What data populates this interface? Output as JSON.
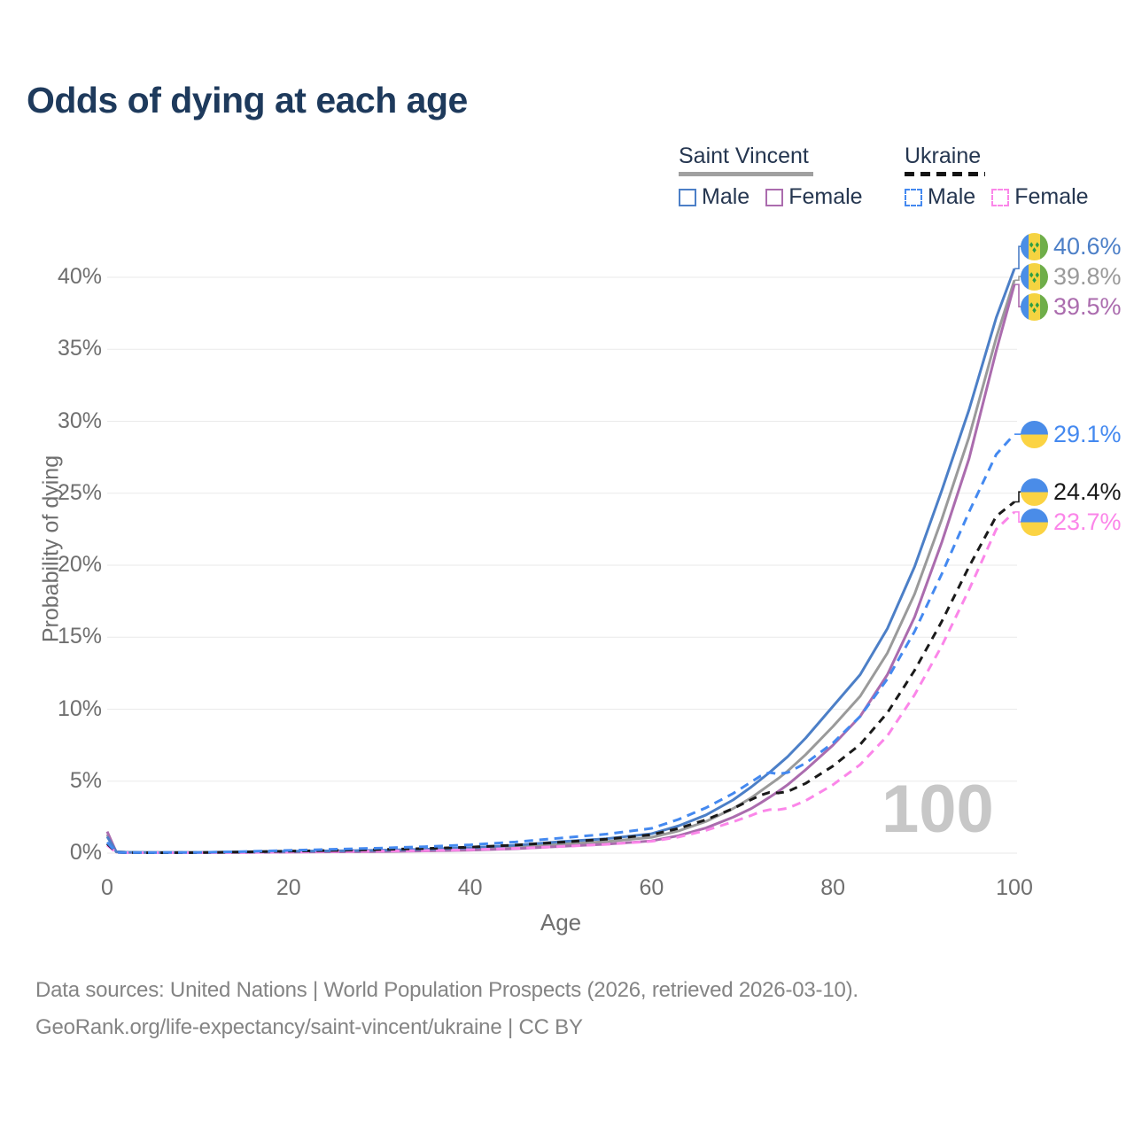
{
  "title": "Odds of dying at each age",
  "watermark": "100",
  "legend": {
    "groups": [
      {
        "name": "Saint Vincent",
        "style": "solid",
        "underline_color": "#a0a0a0",
        "items": [
          {
            "label": "Male",
            "color": "#4c7fc7"
          },
          {
            "label": "Female",
            "color": "#ab6cae"
          }
        ]
      },
      {
        "name": "Ukraine",
        "style": "dashed",
        "underline_color": "#141414",
        "items": [
          {
            "label": "Male",
            "color": "#4489f0"
          },
          {
            "label": "Female",
            "color": "#fb86e9"
          }
        ]
      }
    ]
  },
  "axes": {
    "x": {
      "title": "Age",
      "range": [
        0,
        100
      ],
      "ticks": [
        0,
        20,
        40,
        60,
        80,
        100
      ]
    },
    "y": {
      "title": "Probability of dying",
      "unit": "%",
      "range": [
        0,
        40
      ],
      "ticks": [
        0,
        5,
        10,
        15,
        20,
        25,
        30,
        35,
        40
      ],
      "grid": true
    }
  },
  "flag_colors": {
    "sv": {
      "blue": "#4a8ee6",
      "yellow": "#f5d341",
      "green": "#6fae49",
      "diamond": "#2f9e43"
    },
    "ua": {
      "blue": "#4a8ce8",
      "yellow": "#fbd343"
    }
  },
  "footer": {
    "line1": "Data sources: United Nations | World Population Prospects (2026, retrieved 2026-03-10).",
    "line2": "GeoRank.org/life-expectancy/saint-vincent/ukraine | CC BY"
  },
  "chart_data": {
    "type": "line",
    "x": [
      0,
      1,
      2,
      5,
      10,
      15,
      20,
      25,
      30,
      35,
      40,
      45,
      50,
      55,
      60,
      63,
      66,
      69,
      71,
      72,
      73,
      74,
      75,
      77,
      80,
      83,
      86,
      89,
      92,
      95,
      98,
      100
    ],
    "series": [
      {
        "id": "sv-male",
        "name": "Saint Vincent Male",
        "color": "#4c7fc7",
        "dash": null,
        "flag": "sv",
        "end_label": "40.6%",
        "values": [
          1.15,
          0.1,
          0.07,
          0.05,
          0.05,
          0.09,
          0.13,
          0.16,
          0.2,
          0.27,
          0.38,
          0.55,
          0.8,
          1.0,
          1.35,
          1.9,
          2.65,
          3.7,
          4.6,
          5.1,
          5.6,
          6.15,
          6.7,
          8.0,
          10.2,
          12.4,
          15.6,
          19.9,
          25.2,
          30.8,
          37.2,
          40.6
        ]
      },
      {
        "id": "sv-total",
        "name": "Saint Vincent Both sexes",
        "color": "#9a9a9a",
        "dash": null,
        "flag": "sv",
        "end_label": "39.8%",
        "values": [
          1.3,
          0.09,
          0.06,
          0.05,
          0.05,
          0.07,
          0.1,
          0.12,
          0.15,
          0.2,
          0.28,
          0.42,
          0.62,
          0.8,
          1.1,
          1.55,
          2.2,
          3.1,
          3.85,
          4.3,
          4.75,
          5.2,
          5.7,
          6.85,
          8.8,
          10.9,
          13.9,
          18.0,
          23.2,
          28.9,
          35.8,
          39.8
        ]
      },
      {
        "id": "sv-female",
        "name": "Saint Vincent Female",
        "color": "#ab6cae",
        "dash": null,
        "flag": "sv",
        "end_label": "39.5%",
        "values": [
          1.5,
          0.08,
          0.05,
          0.04,
          0.04,
          0.05,
          0.07,
          0.09,
          0.11,
          0.15,
          0.21,
          0.31,
          0.47,
          0.62,
          0.85,
          1.22,
          1.75,
          2.5,
          3.1,
          3.48,
          3.88,
          4.3,
          4.75,
          5.8,
          7.5,
          9.5,
          12.4,
          16.4,
          21.6,
          27.4,
          34.9,
          39.5
        ]
      },
      {
        "id": "ua-male",
        "name": "Ukraine Male",
        "color": "#4489f0",
        "dash": "10 7",
        "flag": "ua",
        "end_label": "29.1%",
        "values": [
          0.75,
          0.06,
          0.04,
          0.04,
          0.05,
          0.11,
          0.19,
          0.27,
          0.35,
          0.45,
          0.58,
          0.78,
          1.05,
          1.32,
          1.72,
          2.35,
          3.15,
          4.15,
          4.95,
          5.35,
          5.6,
          5.5,
          5.6,
          6.25,
          7.65,
          9.5,
          12.1,
          15.4,
          19.4,
          23.7,
          27.7,
          29.1
        ]
      },
      {
        "id": "ua-total",
        "name": "Ukraine Both sexes",
        "color": "#1a1a1a",
        "dash": "9 7",
        "flag": "ua",
        "end_label": "24.4%",
        "values": [
          0.65,
          0.06,
          0.04,
          0.03,
          0.04,
          0.08,
          0.14,
          0.19,
          0.25,
          0.32,
          0.42,
          0.56,
          0.76,
          0.97,
          1.28,
          1.72,
          2.32,
          3.1,
          3.72,
          4.02,
          4.22,
          4.18,
          4.28,
          4.85,
          6.05,
          7.55,
          9.75,
          12.7,
          16.1,
          19.9,
          23.4,
          24.4
        ]
      },
      {
        "id": "ua-female",
        "name": "Ukraine Female",
        "color": "#fb86e9",
        "dash": "10 7",
        "flag": "ua",
        "end_label": "23.7%",
        "values": [
          0.55,
          0.05,
          0.03,
          0.03,
          0.03,
          0.05,
          0.08,
          0.11,
          0.14,
          0.18,
          0.24,
          0.33,
          0.46,
          0.61,
          0.82,
          1.12,
          1.58,
          2.18,
          2.62,
          2.88,
          3.02,
          3.02,
          3.12,
          3.65,
          4.75,
          6.15,
          8.15,
          11.0,
          14.4,
          18.3,
          22.5,
          23.7
        ]
      }
    ]
  }
}
